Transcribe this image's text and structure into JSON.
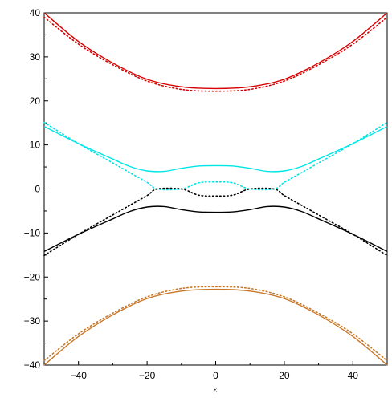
{
  "chart_data": {
    "type": "line",
    "title": "",
    "xlabel": "ε",
    "ylabel": "",
    "xlim": [
      -50,
      50
    ],
    "ylim": [
      -40,
      40
    ],
    "x_ticks": [
      -40,
      -20,
      0,
      20,
      40
    ],
    "y_ticks": [
      -40,
      -30,
      -20,
      -10,
      0,
      10,
      20,
      30,
      40
    ],
    "x_tick_labels": [
      "−40",
      "−20",
      "0",
      "20",
      "40"
    ],
    "y_tick_labels": [
      "−40",
      "−30",
      "−20",
      "−10",
      "0",
      "10",
      "20",
      "30",
      "40"
    ],
    "grid": false,
    "legend": "none",
    "series": [
      {
        "style": "solid",
        "color": "#d80000",
        "x": [
          -50,
          -40,
          -30,
          -20,
          -10,
          0,
          10,
          20,
          30,
          40,
          50
        ],
        "y": [
          40,
          33.5,
          28.6,
          24.9,
          23.2,
          22.8,
          23.2,
          24.9,
          28.6,
          33.5,
          40
        ]
      },
      {
        "style": "dotted",
        "color": "#d80000",
        "x": [
          -50,
          -40,
          -30,
          -20,
          -10,
          0,
          10,
          20,
          30,
          40,
          50
        ],
        "y": [
          39,
          32.9,
          28.2,
          24.5,
          22.6,
          22.2,
          22.6,
          24.5,
          28.2,
          32.9,
          39
        ]
      },
      {
        "style": "solid",
        "color": "#00e6e6",
        "x": [
          -50,
          -40,
          -30,
          -25,
          -20,
          -15,
          -10,
          -5,
          0,
          5,
          10,
          15,
          20,
          25,
          30,
          40,
          50
        ],
        "y": [
          14.2,
          10.3,
          6.8,
          5.1,
          4.1,
          4.0,
          4.7,
          5.2,
          5.3,
          5.2,
          4.7,
          4.0,
          4.1,
          5.1,
          6.8,
          10.3,
          14.2
        ]
      },
      {
        "style": "dotted",
        "color": "#00e6e6",
        "x": [
          -50,
          -40,
          -30,
          -25,
          -20,
          -17,
          -10,
          -5,
          0,
          5,
          10,
          17,
          20,
          25,
          30,
          40,
          50
        ],
        "y": [
          15.1,
          10.3,
          5.9,
          3.7,
          1.5,
          0,
          0,
          1.4,
          1.6,
          1.4,
          0,
          0,
          1.5,
          3.7,
          5.9,
          10.3,
          15.1
        ]
      },
      {
        "style": "solid",
        "color": "#000000",
        "x": [
          -50,
          -40,
          -30,
          -25,
          -20,
          -15,
          -10,
          -5,
          0,
          5,
          10,
          15,
          20,
          25,
          30,
          40,
          50
        ],
        "y": [
          -14.2,
          -10.3,
          -6.8,
          -5.1,
          -4.1,
          -4.0,
          -4.7,
          -5.2,
          -5.3,
          -5.2,
          -4.7,
          -4.0,
          -4.1,
          -5.1,
          -6.8,
          -10.3,
          -14.2
        ]
      },
      {
        "style": "dotted",
        "color": "#000000",
        "x": [
          -50,
          -40,
          -30,
          -25,
          -20,
          -17,
          -10,
          -5,
          0,
          5,
          10,
          17,
          20,
          25,
          30,
          40,
          50
        ],
        "y": [
          -15.1,
          -10.3,
          -5.9,
          -3.7,
          -1.5,
          0,
          0,
          -1.4,
          -1.6,
          -1.4,
          0,
          0,
          -1.5,
          -3.7,
          -5.9,
          -10.3,
          -15.1
        ]
      },
      {
        "style": "solid",
        "color": "#c87828",
        "x": [
          -50,
          -40,
          -30,
          -20,
          -10,
          0,
          10,
          20,
          30,
          40,
          50
        ],
        "y": [
          -40,
          -33.5,
          -28.6,
          -24.9,
          -23.2,
          -22.8,
          -23.2,
          -24.9,
          -28.6,
          -33.5,
          -40
        ]
      },
      {
        "style": "dotted",
        "color": "#c87828",
        "x": [
          -50,
          -40,
          -30,
          -20,
          -10,
          0,
          10,
          20,
          30,
          40,
          50
        ],
        "y": [
          -39,
          -32.9,
          -28.2,
          -24.5,
          -22.6,
          -22.2,
          -22.6,
          -24.5,
          -28.2,
          -32.9,
          -39
        ]
      }
    ]
  }
}
